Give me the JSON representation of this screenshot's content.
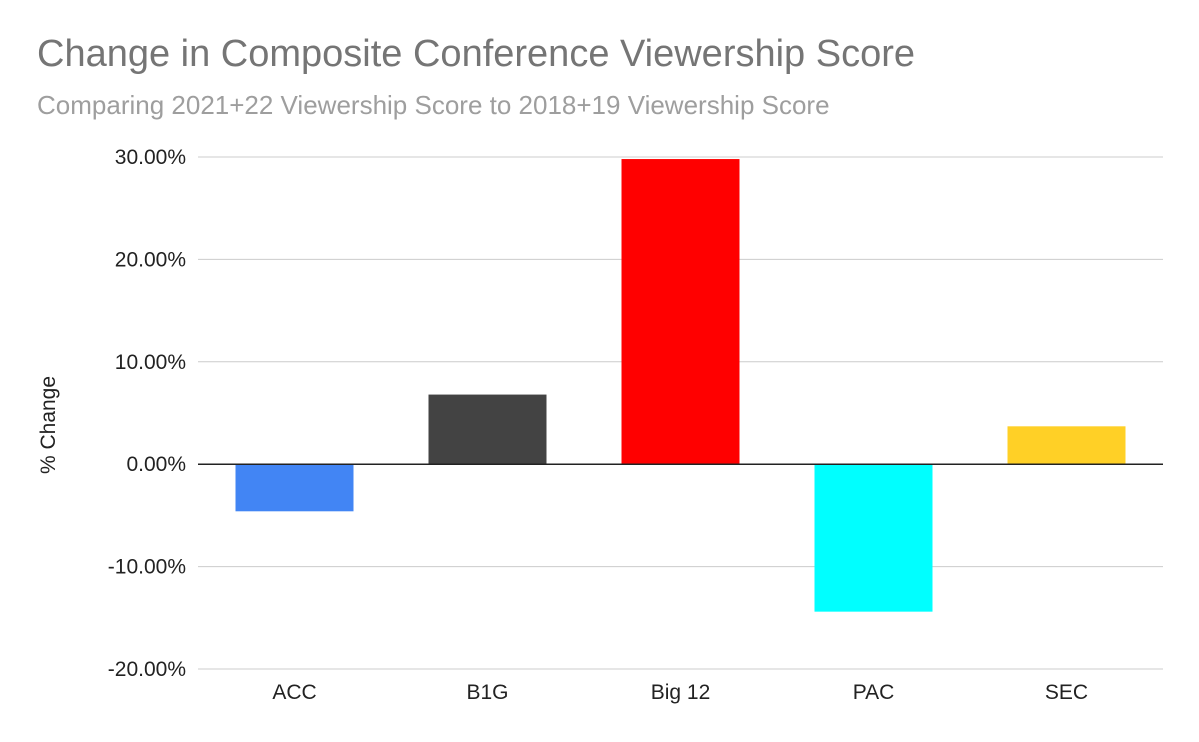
{
  "chart_data": {
    "type": "bar",
    "title": "Change in Composite Conference Viewership Score",
    "subtitle": "Comparing 2021+22 Viewership Score to 2018+19 Viewership Score",
    "ylabel": "% Change",
    "xlabel": "",
    "categories": [
      "ACC",
      "B1G",
      "Big 12",
      "PAC",
      "SEC"
    ],
    "values": [
      -4.6,
      6.8,
      29.8,
      -14.4,
      3.7
    ],
    "colors": [
      "#4285f4",
      "#434343",
      "#ff0000",
      "#00ffff",
      "#ffd026"
    ],
    "ylim": [
      -20,
      30
    ],
    "yticks": [
      30,
      20,
      10,
      0,
      -10,
      -20
    ],
    "ytick_labels": [
      "30.00%",
      "20.00%",
      "10.00%",
      "0.00%",
      "-10.00%",
      "-20.00%"
    ],
    "grid": true,
    "legend": "none"
  }
}
